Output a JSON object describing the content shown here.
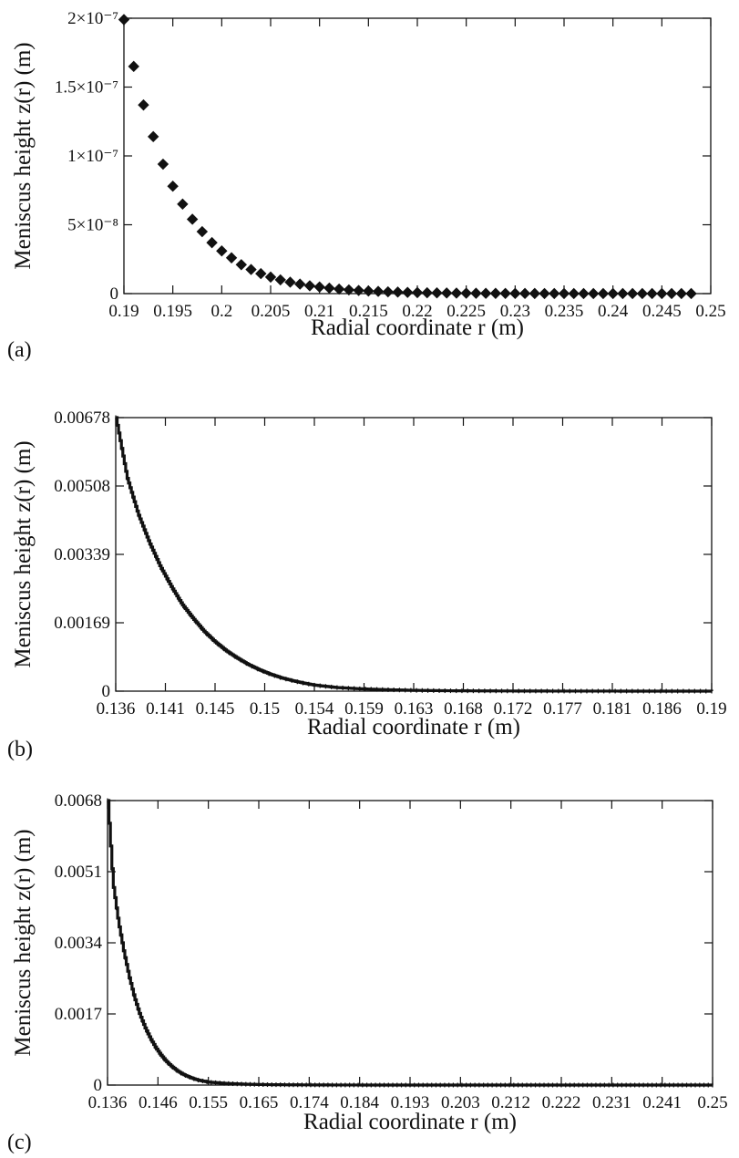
{
  "chart_data": [
    {
      "type": "scatter",
      "panel_label": "(a)",
      "xlabel": "Radial coordinate r (m)",
      "ylabel": "Meniscus height z(r)  (m)",
      "xlim": [
        0.19,
        0.25
      ],
      "ylim": [
        0,
        2e-07
      ],
      "x_ticks": [
        "0.19",
        "0.195",
        "0.2",
        "0.205",
        "0.21",
        "0.215",
        "0.22",
        "0.225",
        "0.23",
        "0.235",
        "0.24",
        "0.245",
        "0.25"
      ],
      "y_ticks": [
        "0",
        "5×10⁻⁸",
        "1×10⁻⁷",
        "1.5×10⁻⁷",
        "2×10⁻⁷"
      ],
      "marker": "diamond",
      "series": [
        {
          "x": [
            0.19,
            0.191,
            0.192,
            0.193,
            0.194,
            0.195,
            0.196,
            0.197,
            0.198,
            0.199,
            0.2,
            0.201,
            0.202,
            0.203,
            0.204,
            0.205,
            0.206,
            0.207,
            0.208,
            0.209,
            0.21,
            0.211,
            0.212,
            0.213,
            0.214,
            0.215,
            0.216,
            0.217,
            0.218,
            0.219,
            0.22,
            0.221,
            0.222,
            0.223,
            0.224,
            0.225,
            0.226,
            0.227,
            0.228,
            0.229,
            0.23,
            0.231,
            0.232,
            0.233,
            0.234,
            0.235,
            0.236,
            0.237,
            0.238,
            0.239,
            0.24,
            0.241,
            0.242,
            0.243,
            0.244,
            0.245,
            0.246,
            0.247,
            0.248
          ],
          "y": [
            1.99e-07,
            1.65e-07,
            1.37e-07,
            1.14e-07,
            9.4e-08,
            7.8e-08,
            6.5e-08,
            5.4e-08,
            4.5e-08,
            3.7e-08,
            3.1e-08,
            2.6e-08,
            2.1e-08,
            1.75e-08,
            1.45e-08,
            1.2e-08,
            1e-08,
            8.3e-09,
            6.9e-09,
            5.7e-09,
            4.8e-09,
            4e-09,
            3.3e-09,
            2.7e-09,
            2.3e-09,
            1.9e-09,
            1.6e-09,
            1.3e-09,
            1.1e-09,
            9e-10,
            7.5e-10,
            6.2e-10,
            5.2e-10,
            4.3e-10,
            3.6e-10,
            3e-10,
            2.5e-10,
            2e-10,
            1.7e-10,
            1.4e-10,
            1.2e-10,
            1e-10,
            8e-11,
            7e-11,
            6e-11,
            5e-11,
            4e-11,
            3e-11,
            3e-11,
            2e-11,
            2e-11,
            2e-11,
            1e-11,
            1e-11,
            1e-11,
            1e-11,
            1e-11,
            1e-11,
            1e-11
          ]
        }
      ]
    },
    {
      "type": "line",
      "panel_label": "(b)",
      "xlabel": "Radial coordinate r  (m)",
      "ylabel": "Meniscus height z(r)  (m)",
      "xlim": [
        0.136,
        0.19
      ],
      "ylim": [
        0,
        0.00678
      ],
      "x_ticks": [
        "0.136",
        "0.141",
        "0.145",
        "0.15",
        "0.154",
        "0.159",
        "0.163",
        "0.168",
        "0.172",
        "0.177",
        "0.181",
        "0.186",
        "0.19"
      ],
      "y_ticks": [
        "0",
        "0.00169",
        "0.00339",
        "0.00508",
        "0.00678"
      ],
      "series": [
        {
          "x": [
            0.136,
            0.137,
            0.138,
            0.139,
            0.14,
            0.141,
            0.142,
            0.143,
            0.144,
            0.145,
            0.146,
            0.147,
            0.148,
            0.149,
            0.15,
            0.151,
            0.152,
            0.153,
            0.154,
            0.156,
            0.158,
            0.16,
            0.163,
            0.166,
            0.17,
            0.175,
            0.18,
            0.185,
            0.19
          ],
          "y": [
            0.00678,
            0.0053,
            0.0044,
            0.0037,
            0.0031,
            0.0026,
            0.00215,
            0.0018,
            0.00148,
            0.00122,
            0.001,
            0.00082,
            0.00066,
            0.00053,
            0.00042,
            0.00033,
            0.00026,
            0.0002,
            0.00015,
            9e-05,
            6e-05,
            4e-05,
            2e-05,
            1e-05,
            5e-06,
            2e-06,
            1e-06,
            5e-07,
            0.0
          ]
        }
      ]
    },
    {
      "type": "line",
      "panel_label": "(c)",
      "xlabel": "Radial coordinate r  (m)",
      "ylabel": "Meniscus height z(r)  (m)",
      "xlim": [
        0.136,
        0.25
      ],
      "ylim": [
        0,
        0.0068
      ],
      "x_ticks": [
        "0.136",
        "0.146",
        "0.155",
        "0.165",
        "0.174",
        "0.184",
        "0.193",
        "0.203",
        "0.212",
        "0.222",
        "0.231",
        "0.241",
        "0.25"
      ],
      "y_ticks": [
        "0",
        "0.0017",
        "0.0034",
        "0.0051",
        "0.0068"
      ],
      "series": [
        {
          "x": [
            0.136,
            0.137,
            0.138,
            0.139,
            0.14,
            0.141,
            0.142,
            0.143,
            0.144,
            0.145,
            0.146,
            0.147,
            0.148,
            0.149,
            0.15,
            0.151,
            0.152,
            0.153,
            0.155,
            0.158,
            0.162,
            0.166,
            0.17,
            0.175,
            0.18,
            0.19,
            0.2,
            0.21,
            0.22,
            0.23,
            0.24,
            0.25
          ],
          "y": [
            0.0068,
            0.0048,
            0.0039,
            0.0032,
            0.0026,
            0.0021,
            0.0017,
            0.00138,
            0.00112,
            0.0009,
            0.00072,
            0.00057,
            0.00045,
            0.00035,
            0.00027,
            0.00021,
            0.00016,
            0.00012,
            7e-05,
            4e-05,
            2e-05,
            1e-05,
            6e-06,
            3e-06,
            1e-06,
            5e-07,
            0.0,
            0.0,
            0.0,
            0.0,
            0.0,
            0.0
          ]
        }
      ]
    }
  ]
}
